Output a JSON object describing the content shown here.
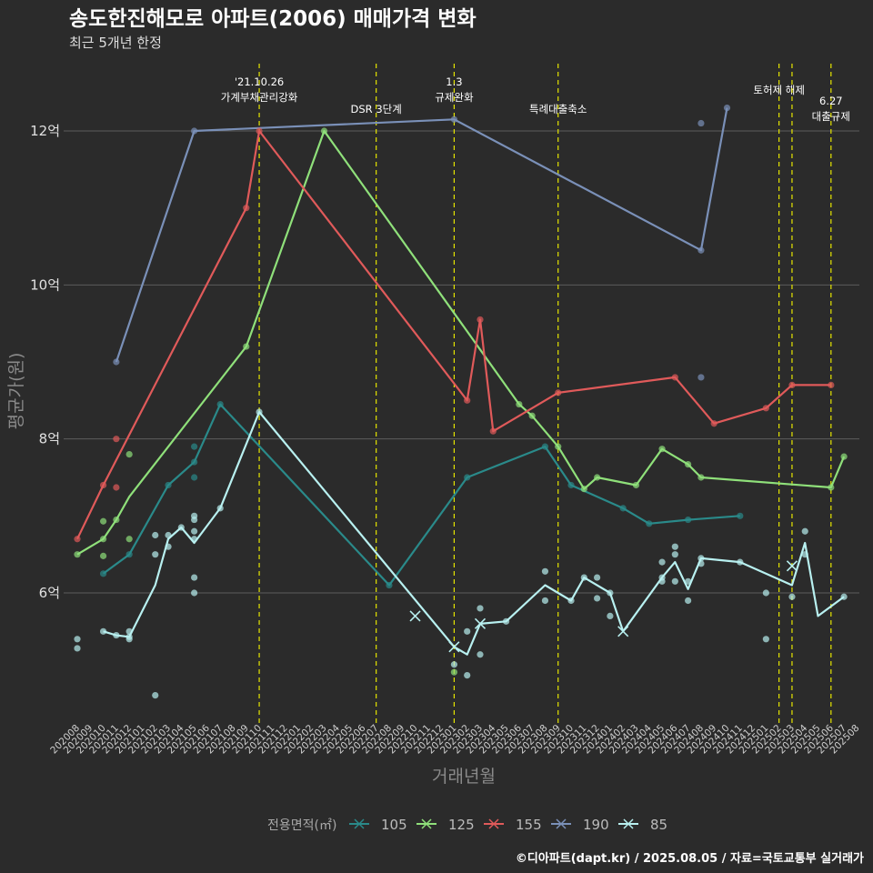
{
  "chart_data": {
    "type": "line",
    "title": "송도한진해모로 아파트(2006) 매매가격 변화",
    "subtitle": "최근 5개년 한정",
    "xlabel": "거래년월",
    "ylabel": "평균가(원)",
    "caption": "©디아파트(dapt.kr) / 2025.08.05 / 자료=국토교통부 실거래가",
    "legend_title": "전용면적(㎡)",
    "legend_position": "bottom",
    "x_start": "202008",
    "x_end": "202508",
    "ylim": [
      4.3,
      12.9
    ],
    "y_ticks": [
      6,
      8,
      10,
      12
    ],
    "y_tick_labels": [
      "6억",
      "8억",
      "10억",
      "12억"
    ],
    "x_ticks": [
      "202008",
      "202009",
      "202010",
      "202011",
      "202012",
      "202101",
      "202102",
      "202103",
      "202104",
      "202105",
      "202106",
      "202107",
      "202108",
      "202109",
      "202110",
      "202111",
      "202112",
      "202201",
      "202202",
      "202203",
      "202204",
      "202205",
      "202206",
      "202207",
      "202208",
      "202209",
      "202210",
      "202211",
      "202212",
      "202301",
      "202302",
      "202303",
      "202304",
      "202305",
      "202306",
      "202307",
      "202308",
      "202309",
      "202310",
      "202311",
      "202312",
      "202401",
      "202402",
      "202403",
      "202404",
      "202405",
      "202406",
      "202407",
      "202408",
      "202409",
      "202410",
      "202411",
      "202412",
      "202501",
      "202502",
      "202503",
      "202504",
      "202505",
      "202506",
      "202507",
      "202508"
    ],
    "events": [
      {
        "date": "202110",
        "label": "'21.10.26\n가계부채관리강화"
      },
      {
        "date": "202207",
        "label": "DSR 3단계"
      },
      {
        "date": "202301",
        "label": "1.3\n규제완화"
      },
      {
        "date": "202309",
        "label": "특례대출축소"
      },
      {
        "date": "202502",
        "label": "토허제 해제"
      },
      {
        "date": "202503",
        "label": ""
      },
      {
        "date": "202506",
        "label": "6.27\n대출규제"
      }
    ],
    "series": [
      {
        "name": "105",
        "color": "#2a8a8a",
        "line": [
          [
            "202010",
            6.25
          ],
          [
            "202012",
            6.5
          ],
          [
            "202103",
            7.4
          ],
          [
            "202105",
            7.7
          ],
          [
            "202107",
            8.45
          ],
          [
            "202208",
            6.1
          ],
          [
            "202302",
            7.5
          ],
          [
            "202308",
            7.9
          ],
          [
            "202310",
            7.4
          ],
          [
            "202402",
            7.1
          ],
          [
            "202404",
            6.9
          ],
          [
            "202407",
            6.95
          ],
          [
            "202411",
            7.0
          ]
        ],
        "points": [
          [
            "202010",
            6.25
          ],
          [
            "202012",
            6.5
          ],
          [
            "202103",
            7.4
          ],
          [
            "202105",
            7.7
          ],
          [
            "202105",
            7.9
          ],
          [
            "202105",
            7.5
          ],
          [
            "202107",
            8.45
          ],
          [
            "202208",
            6.1
          ],
          [
            "202302",
            7.5
          ],
          [
            "202308",
            7.9
          ],
          [
            "202310",
            7.4
          ],
          [
            "202402",
            7.1
          ],
          [
            "202404",
            6.9
          ],
          [
            "202407",
            6.95
          ],
          [
            "202411",
            7.0
          ]
        ],
        "cross_points": []
      },
      {
        "name": "125",
        "color": "#8fe07a",
        "line": [
          [
            "202008",
            6.5
          ],
          [
            "202010",
            6.7
          ],
          [
            "202011",
            6.95
          ],
          [
            "202012",
            7.25
          ],
          [
            "202109",
            9.2
          ],
          [
            "202203",
            12.0
          ],
          [
            "202306",
            8.45
          ],
          [
            "202307",
            8.3
          ],
          [
            "202309",
            7.9
          ],
          [
            "202311",
            7.35
          ],
          [
            "202312",
            7.5
          ],
          [
            "202403",
            7.4
          ],
          [
            "202405",
            7.87
          ],
          [
            "202407",
            7.67
          ],
          [
            "202408",
            7.5
          ],
          [
            "202506",
            7.37
          ],
          [
            "202507",
            7.77
          ]
        ],
        "points": [
          [
            "202008",
            6.5
          ],
          [
            "202010",
            6.7
          ],
          [
            "202010",
            6.93
          ],
          [
            "202010",
            6.48
          ],
          [
            "202011",
            6.95
          ],
          [
            "202012",
            7.8
          ],
          [
            "202012",
            6.7
          ],
          [
            "202109",
            9.2
          ],
          [
            "202203",
            12.0
          ],
          [
            "202301",
            4.97
          ],
          [
            "202306",
            8.45
          ],
          [
            "202307",
            8.3
          ],
          [
            "202309",
            7.9
          ],
          [
            "202311",
            7.35
          ],
          [
            "202312",
            7.5
          ],
          [
            "202403",
            7.4
          ],
          [
            "202405",
            7.87
          ],
          [
            "202407",
            7.67
          ],
          [
            "202408",
            7.5
          ],
          [
            "202506",
            7.37
          ],
          [
            "202507",
            7.77
          ]
        ],
        "cross_points": []
      },
      {
        "name": "155",
        "color": "#e05a5a",
        "line": [
          [
            "202008",
            6.7
          ],
          [
            "202010",
            7.4
          ],
          [
            "202109",
            11.0
          ],
          [
            "202110",
            12.0
          ],
          [
            "202302",
            8.5
          ],
          [
            "202303",
            9.55
          ],
          [
            "202304",
            8.1
          ],
          [
            "202309",
            8.6
          ],
          [
            "202406",
            8.8
          ],
          [
            "202409",
            8.2
          ],
          [
            "202501",
            8.4
          ],
          [
            "202503",
            8.7
          ],
          [
            "202506",
            8.7
          ]
        ],
        "points": [
          [
            "202008",
            6.7
          ],
          [
            "202010",
            7.4
          ],
          [
            "202011",
            8.0
          ],
          [
            "202011",
            7.37
          ],
          [
            "202109",
            11.0
          ],
          [
            "202110",
            12.0
          ],
          [
            "202302",
            8.5
          ],
          [
            "202303",
            9.55
          ],
          [
            "202304",
            8.1
          ],
          [
            "202309",
            8.6
          ],
          [
            "202406",
            8.8
          ],
          [
            "202409",
            8.2
          ],
          [
            "202501",
            8.4
          ],
          [
            "202503",
            8.7
          ],
          [
            "202506",
            8.7
          ]
        ],
        "cross_points": []
      },
      {
        "name": "190",
        "color": "#7a90b8",
        "line": [
          [
            "202011",
            9.0
          ],
          [
            "202105",
            12.0
          ],
          [
            "202301",
            12.15
          ],
          [
            "202408",
            10.45
          ],
          [
            "202410",
            12.3
          ]
        ],
        "points": [
          [
            "202011",
            9.0
          ],
          [
            "202105",
            12.0
          ],
          [
            "202301",
            12.15
          ],
          [
            "202408",
            10.45
          ],
          [
            "202408",
            12.1
          ],
          [
            "202408",
            8.8
          ],
          [
            "202410",
            12.3
          ]
        ],
        "cross_points": []
      },
      {
        "name": "85",
        "color": "#b8f0f0",
        "line": [
          [
            "202010",
            5.5
          ],
          [
            "202011",
            5.45
          ],
          [
            "202012",
            5.43
          ],
          [
            "202102",
            6.1
          ],
          [
            "202103",
            6.7
          ],
          [
            "202104",
            6.85
          ],
          [
            "202105",
            6.65
          ],
          [
            "202107",
            7.1
          ],
          [
            "202110",
            8.35
          ],
          [
            "202301",
            5.3
          ],
          [
            "202302",
            5.2
          ],
          [
            "202303",
            5.6
          ],
          [
            "202305",
            5.63
          ],
          [
            "202308",
            6.1
          ],
          [
            "202310",
            5.9
          ],
          [
            "202311",
            6.2
          ],
          [
            "202401",
            6.0
          ],
          [
            "202402",
            5.5
          ],
          [
            "202405",
            6.2
          ],
          [
            "202406",
            6.4
          ],
          [
            "202407",
            6.05
          ],
          [
            "202408",
            6.45
          ],
          [
            "202411",
            6.4
          ],
          [
            "202503",
            6.1
          ],
          [
            "202504",
            6.65
          ],
          [
            "202505",
            5.7
          ],
          [
            "202507",
            5.95
          ]
        ],
        "points": [
          [
            "202008",
            5.4
          ],
          [
            "202008",
            5.28
          ],
          [
            "202010",
            5.5
          ],
          [
            "202011",
            5.45
          ],
          [
            "202012",
            5.43
          ],
          [
            "202012",
            5.5
          ],
          [
            "202012",
            5.4
          ],
          [
            "202102",
            4.67
          ],
          [
            "202102",
            6.75
          ],
          [
            "202102",
            6.5
          ],
          [
            "202103",
            6.6
          ],
          [
            "202103",
            6.75
          ],
          [
            "202104",
            6.85
          ],
          [
            "202105",
            6.8
          ],
          [
            "202105",
            6.7
          ],
          [
            "202105",
            6.95
          ],
          [
            "202105",
            7.0
          ],
          [
            "202105",
            6.2
          ],
          [
            "202105",
            6.0
          ],
          [
            "202107",
            7.1
          ],
          [
            "202110",
            8.35
          ],
          [
            "202301",
            5.07
          ],
          [
            "202302",
            5.5
          ],
          [
            "202302",
            4.93
          ],
          [
            "202303",
            5.8
          ],
          [
            "202303",
            5.2
          ],
          [
            "202305",
            5.63
          ],
          [
            "202308",
            6.28
          ],
          [
            "202308",
            5.9
          ],
          [
            "202310",
            5.9
          ],
          [
            "202311",
            6.2
          ],
          [
            "202312",
            6.2
          ],
          [
            "202312",
            5.93
          ],
          [
            "202401",
            6.0
          ],
          [
            "202401",
            5.7
          ],
          [
            "202405",
            6.4
          ],
          [
            "202405",
            6.2
          ],
          [
            "202405",
            6.15
          ],
          [
            "202406",
            6.6
          ],
          [
            "202406",
            6.5
          ],
          [
            "202406",
            6.15
          ],
          [
            "202407",
            5.9
          ],
          [
            "202407",
            6.15
          ],
          [
            "202408",
            6.45
          ],
          [
            "202408",
            6.38
          ],
          [
            "202411",
            6.4
          ],
          [
            "202501",
            6.0
          ],
          [
            "202501",
            5.4
          ],
          [
            "202503",
            5.95
          ],
          [
            "202504",
            6.8
          ],
          [
            "202504",
            6.5
          ],
          [
            "202507",
            5.95
          ]
        ],
        "cross_points": [
          [
            "202210",
            5.7
          ],
          [
            "202301",
            5.3
          ],
          [
            "202303",
            5.6
          ],
          [
            "202402",
            5.5
          ],
          [
            "202503",
            6.35
          ]
        ]
      }
    ]
  }
}
